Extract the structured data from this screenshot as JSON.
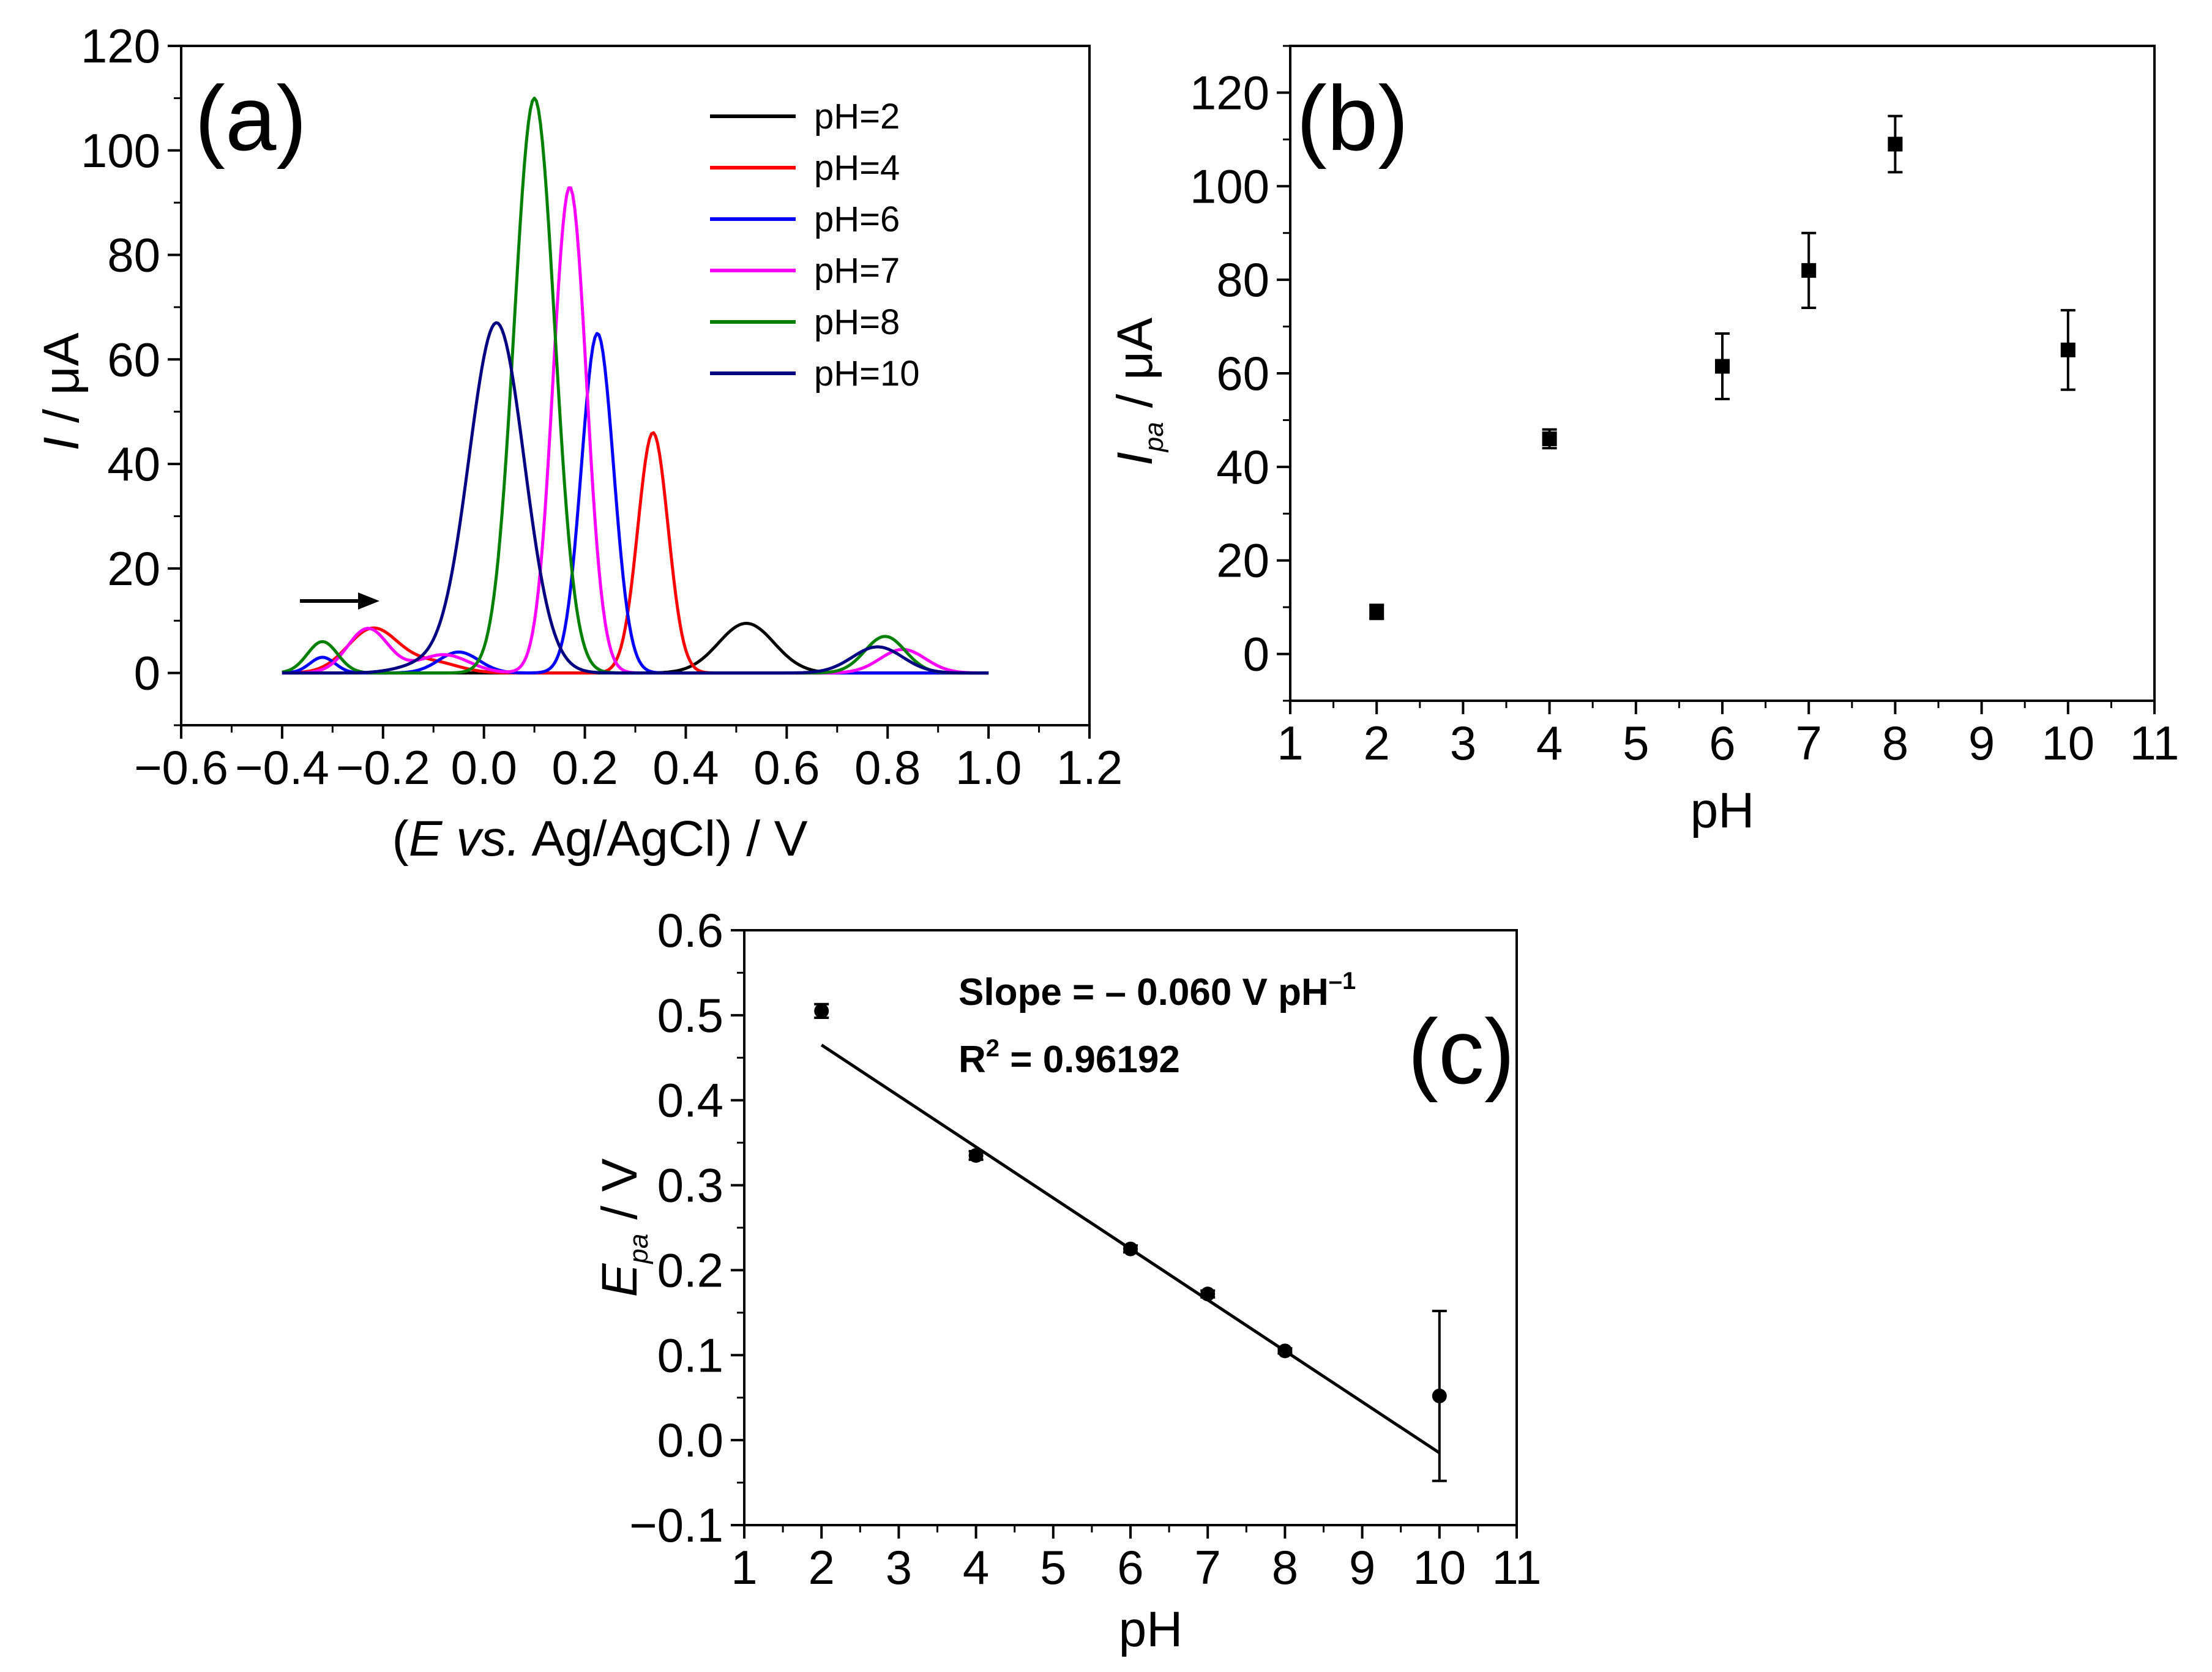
{
  "chart_data": [
    {
      "panel": "(a)",
      "type": "line",
      "xlabel": {
        "open": "(",
        "var": "E",
        "vs": " vs.",
        "rest": " Ag/AgCl) / V"
      },
      "ylabel": {
        "var": "I",
        "unit": " / μA"
      },
      "xlim": [
        -0.6,
        1.2
      ],
      "ylim": [
        -10,
        120
      ],
      "xticks": [
        "−0.6",
        "−0.4",
        "−0.2",
        "0.0",
        "0.2",
        "0.4",
        "0.6",
        "0.8",
        "1.0",
        "1.2"
      ],
      "yticks": [
        "0",
        "20",
        "40",
        "60",
        "80",
        "100",
        "120"
      ],
      "arrow": "scan direction →",
      "series": [
        {
          "name": "pH=2",
          "color": "#000000",
          "x_range": [
            -0.4,
            1.0
          ],
          "peaks": [
            {
              "center": 0.52,
              "height": 9.5,
              "width": 0.055
            }
          ]
        },
        {
          "name": "pH=4",
          "color": "#ff0000",
          "x_range": [
            -0.4,
            1.0
          ],
          "peaks": [
            {
              "center": 0.335,
              "height": 46,
              "width": 0.03
            },
            {
              "center": -0.22,
              "height": 8.5,
              "width": 0.05
            },
            {
              "center": -0.1,
              "height": 2,
              "width": 0.05
            }
          ]
        },
        {
          "name": "pH=6",
          "color": "#0000ff",
          "x_range": [
            -0.4,
            1.0
          ],
          "peaks": [
            {
              "center": 0.225,
              "height": 65,
              "width": 0.032
            },
            {
              "center": -0.05,
              "height": 4,
              "width": 0.04
            },
            {
              "center": -0.32,
              "height": 3,
              "width": 0.025
            }
          ]
        },
        {
          "name": "pH=7",
          "color": "#ff00ff",
          "x_range": [
            -0.4,
            1.0
          ],
          "peaks": [
            {
              "center": 0.17,
              "height": 93,
              "width": 0.033
            },
            {
              "center": -0.23,
              "height": 8.5,
              "width": 0.04
            },
            {
              "center": -0.08,
              "height": 3.5,
              "width": 0.05
            },
            {
              "center": 0.83,
              "height": 4.5,
              "width": 0.045
            }
          ]
        },
        {
          "name": "pH=8",
          "color": "#008000",
          "x_range": [
            -0.4,
            1.0
          ],
          "peaks": [
            {
              "center": 0.1,
              "height": 110,
              "width": 0.04
            },
            {
              "center": -0.32,
              "height": 6,
              "width": 0.03
            },
            {
              "center": 0.795,
              "height": 7,
              "width": 0.04
            }
          ]
        },
        {
          "name": "pH=10",
          "color": "#000080",
          "x_range": [
            -0.4,
            1.0
          ],
          "peaks": [
            {
              "center": 0.025,
              "height": 67,
              "width": 0.055
            },
            {
              "center": 0.78,
              "height": 5,
              "width": 0.05
            },
            {
              "center": -0.12,
              "height": 1.5,
              "width": 0.05
            }
          ]
        }
      ]
    },
    {
      "panel": "(b)",
      "type": "scatter",
      "xlabel": "pH",
      "ylabel": {
        "var": "I",
        "sub": "pa",
        "unit": " / μA"
      },
      "xlim": [
        1,
        11
      ],
      "ylim": [
        -10,
        130
      ],
      "xticks": [
        "1",
        "2",
        "3",
        "4",
        "5",
        "6",
        "7",
        "8",
        "9",
        "10",
        "11"
      ],
      "yticks": [
        "0",
        "20",
        "40",
        "60",
        "80",
        "100",
        "120"
      ],
      "x": [
        2,
        4,
        6,
        7,
        8,
        10
      ],
      "y": [
        9,
        46,
        61.5,
        82,
        109,
        65
      ],
      "err": [
        1.5,
        2,
        7,
        8,
        6,
        8.5
      ]
    },
    {
      "panel": "(c)",
      "type": "scatter",
      "xlabel": "pH",
      "ylabel": {
        "var": "E",
        "sub": "pa",
        "unit": " / V"
      },
      "xlim": [
        1,
        11
      ],
      "ylim": [
        -0.1,
        0.6
      ],
      "xticks": [
        "1",
        "2",
        "3",
        "4",
        "5",
        "6",
        "7",
        "8",
        "9",
        "10",
        "11"
      ],
      "yticks": [
        "−0.1",
        "0.0",
        "0.1",
        "0.2",
        "0.3",
        "0.4",
        "0.5",
        "0.6"
      ],
      "x": [
        2,
        4,
        6,
        7,
        8,
        10
      ],
      "y": [
        0.505,
        0.335,
        0.225,
        0.172,
        0.105,
        0.052
      ],
      "err": [
        0.008,
        0.005,
        0.004,
        0.004,
        0.003,
        0.1
      ],
      "fit": {
        "x": [
          2,
          10
        ],
        "y": [
          0.465,
          -0.015
        ]
      },
      "slope_text": {
        "main": "Slope = – 0.060 V pH",
        "sup": "–1"
      },
      "r2_text": {
        "main": "R",
        "sup": "2",
        "rest": " = 0.96192"
      }
    }
  ]
}
